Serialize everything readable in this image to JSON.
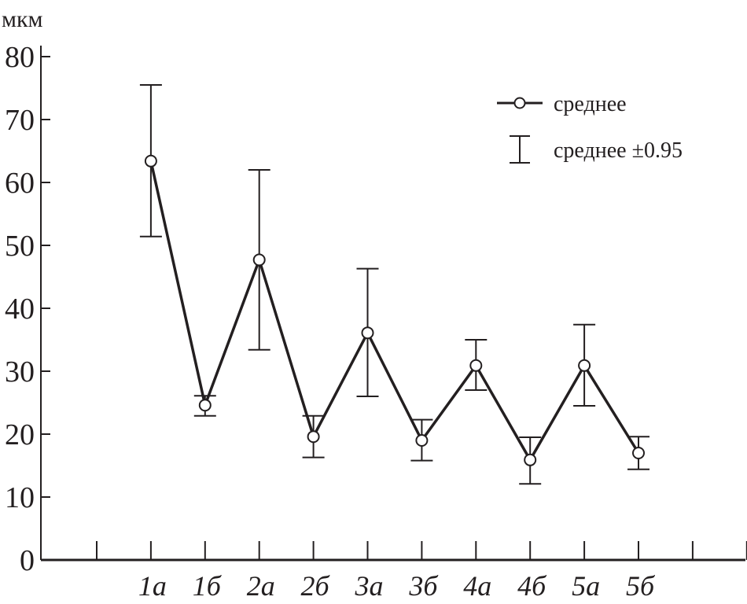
{
  "chart_data": {
    "type": "line",
    "title": "",
    "xlabel": "",
    "ylabel": "мкм",
    "ylim": [
      0,
      80
    ],
    "yticks": [
      0,
      10,
      20,
      30,
      40,
      50,
      60,
      70,
      80
    ],
    "categories": [
      "1а",
      "1б",
      "2а",
      "2б",
      "3а",
      "3б",
      "4а",
      "4б",
      "5а",
      "5б"
    ],
    "series": [
      {
        "name": "среднее",
        "values": [
          63.4,
          24.6,
          47.7,
          19.6,
          36.1,
          19.0,
          30.9,
          15.9,
          30.9,
          17.0
        ],
        "error_upper": [
          75.5,
          26.1,
          62.0,
          22.9,
          46.3,
          22.3,
          35.0,
          19.5,
          37.4,
          19.6
        ],
        "error_lower": [
          51.4,
          22.9,
          33.4,
          16.3,
          26.0,
          15.8,
          27.0,
          12.1,
          24.5,
          14.4
        ]
      }
    ],
    "legend": {
      "placement": "top-right",
      "mean_label": "среднее",
      "error_label": "среднее ±0.95"
    },
    "grid": false,
    "color": "#231f20"
  }
}
